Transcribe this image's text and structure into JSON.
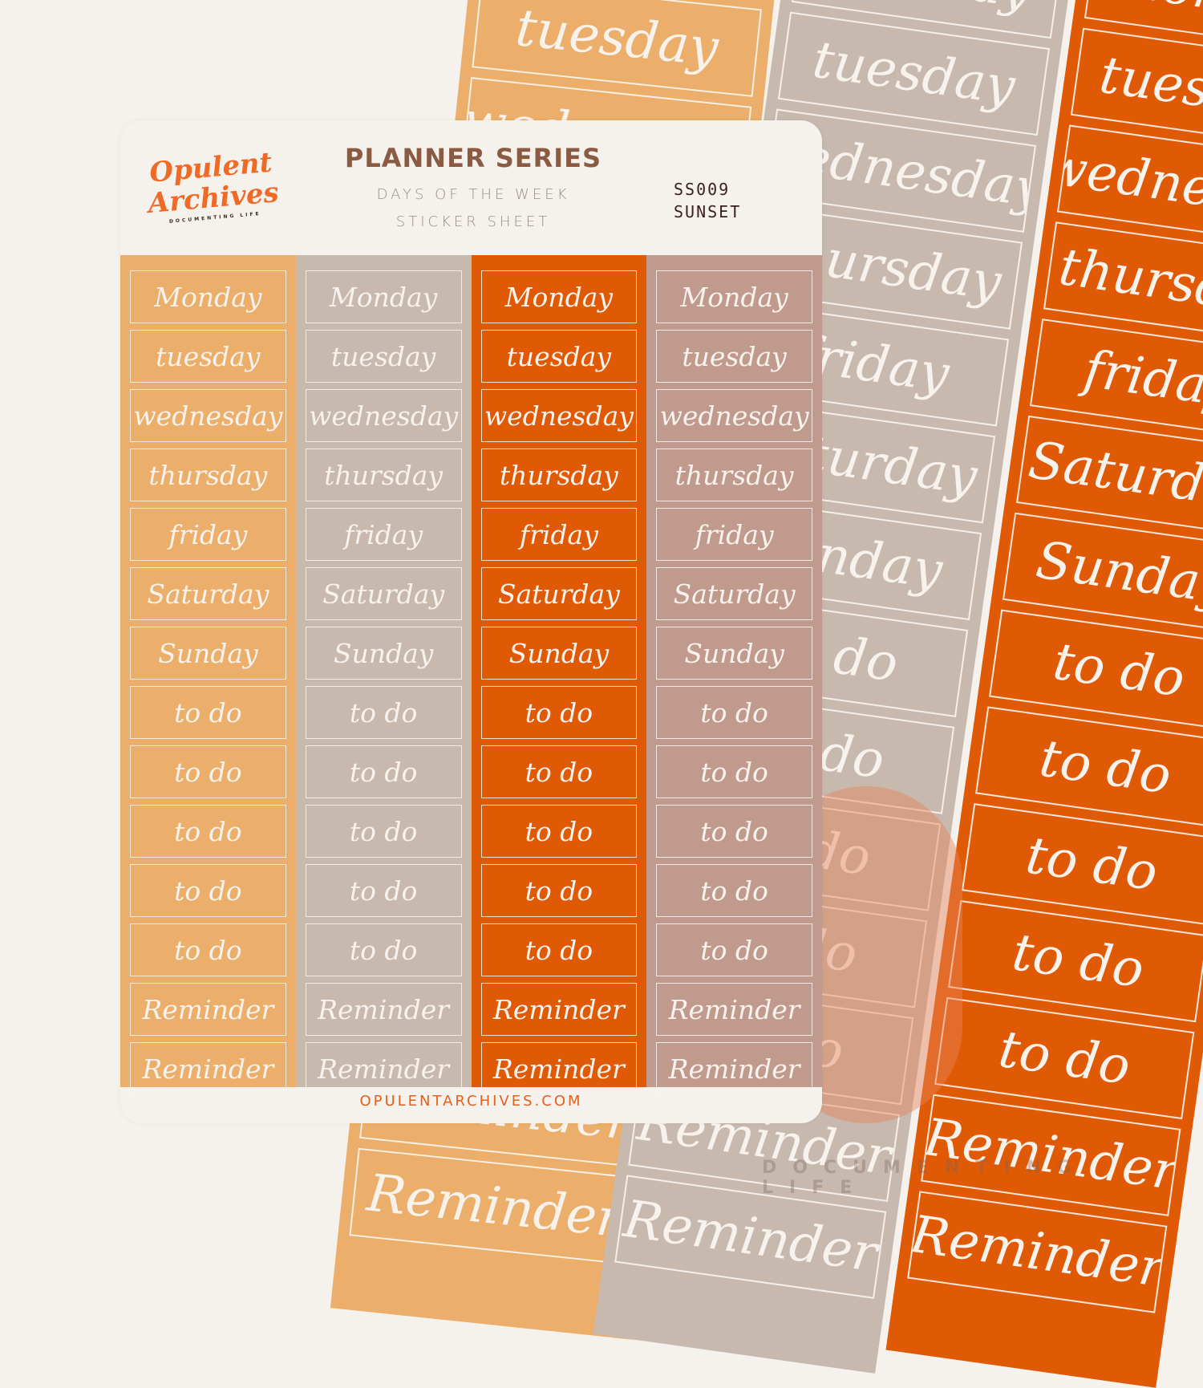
{
  "labels": [
    "Monday",
    "tuesday",
    "wednesday",
    "thursday",
    "friday",
    "Saturday",
    "Sunday",
    "to do",
    "to do",
    "to do",
    "to do",
    "to do",
    "Reminder",
    "Reminder"
  ],
  "colors": {
    "col1": "#EBAF6B",
    "col2": "#C7B9AE",
    "col3": "#E05A05",
    "col4": "#C09A8D",
    "background": "#F5F1EC",
    "brand": "#F06A25"
  },
  "logo": {
    "line1": "Opulent",
    "line2": "Archives",
    "tagline": "DOCUMENTING LIFE"
  },
  "header": {
    "title": "PLANNER SERIES",
    "subtitle1": "DAYS OF THE WEEK",
    "subtitle2": "STICKER SHEET",
    "code": "SS009",
    "name": "SUNSET"
  },
  "footer": {
    "url": "OPULENTARCHIVES.COM"
  },
  "watermark": "DOCUMENTING LIFE"
}
